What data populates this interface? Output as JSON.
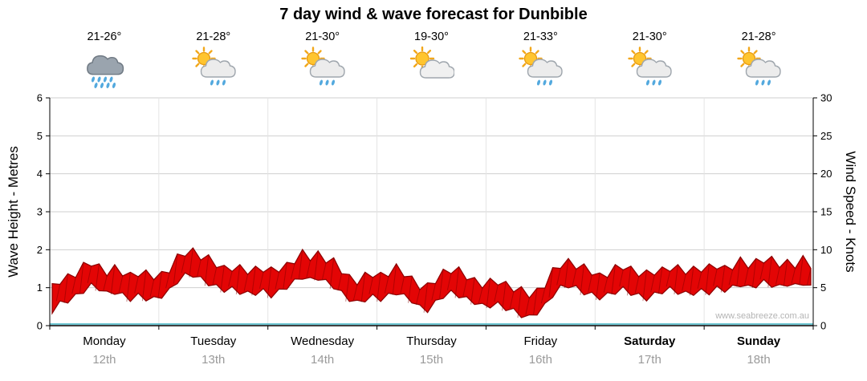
{
  "watermark": "www.seabreeze.com.au",
  "chart_data": {
    "type": "area",
    "title": "7 day wind & wave forecast for Dunbible",
    "left_axis": {
      "label": "Wave Height - Metres",
      "min": 0,
      "max": 6,
      "ticks": [
        0,
        1,
        2,
        3,
        4,
        5,
        6
      ]
    },
    "right_axis": {
      "label": "Wind Speed - Knots",
      "min": 0,
      "max": 30,
      "ticks": [
        0,
        5,
        10,
        15,
        20,
        25,
        30
      ]
    },
    "grid": true,
    "legend": false,
    "series_color": "#E30505",
    "days": [
      {
        "name": "Monday",
        "date": "12th",
        "temp": "21-26°",
        "icon": "rain-cloud",
        "bold": false
      },
      {
        "name": "Tuesday",
        "date": "13th",
        "temp": "21-28°",
        "icon": "sun-cloud-rain",
        "bold": false
      },
      {
        "name": "Wednesday",
        "date": "14th",
        "temp": "21-30°",
        "icon": "sun-cloud-rain",
        "bold": false
      },
      {
        "name": "Thursday",
        "date": "15th",
        "temp": "19-30°",
        "icon": "sun-cloud",
        "bold": false
      },
      {
        "name": "Friday",
        "date": "16th",
        "temp": "21-33°",
        "icon": "sun-cloud-rain",
        "bold": false
      },
      {
        "name": "Saturday",
        "date": "17th",
        "temp": "21-30°",
        "icon": "sun-cloud-rain",
        "bold": true
      },
      {
        "name": "Sunday",
        "date": "18th",
        "temp": "21-28°",
        "icon": "sun-cloud-rain",
        "bold": true
      }
    ],
    "series": [
      {
        "name": "Wind Speed",
        "unit": "knots",
        "samples_per_day": 14,
        "values": [
          3.5,
          4.5,
          5.0,
          5.5,
          6.2,
          6.8,
          6.4,
          5.8,
          6.0,
          5.6,
          5.2,
          5.6,
          5.2,
          5.0,
          5.4,
          6.2,
          7.4,
          8.2,
          8.4,
          7.8,
          7.2,
          6.6,
          6.2,
          6.4,
          6.0,
          5.8,
          6.0,
          6.2,
          5.6,
          6.0,
          6.6,
          7.4,
          8.0,
          7.6,
          8.0,
          7.4,
          6.8,
          5.8,
          5.0,
          4.6,
          5.0,
          5.4,
          5.2,
          5.6,
          6.0,
          5.4,
          4.8,
          4.0,
          3.6,
          4.6,
          5.6,
          6.0,
          5.6,
          5.0,
          4.6,
          4.2,
          4.2,
          4.4,
          4.0,
          3.6,
          3.0,
          2.6,
          3.2,
          4.2,
          5.6,
          6.6,
          7.0,
          6.6,
          6.0,
          5.6,
          5.2,
          5.6,
          6.0,
          6.4,
          6.0,
          5.6,
          5.2,
          5.6,
          6.0,
          6.4,
          6.0,
          5.8,
          6.0,
          6.2,
          6.0,
          6.4,
          6.2,
          6.6,
          7.0,
          6.6,
          7.0,
          7.4,
          7.0,
          6.6,
          7.0,
          6.8,
          7.2,
          6.6
        ]
      }
    ]
  }
}
